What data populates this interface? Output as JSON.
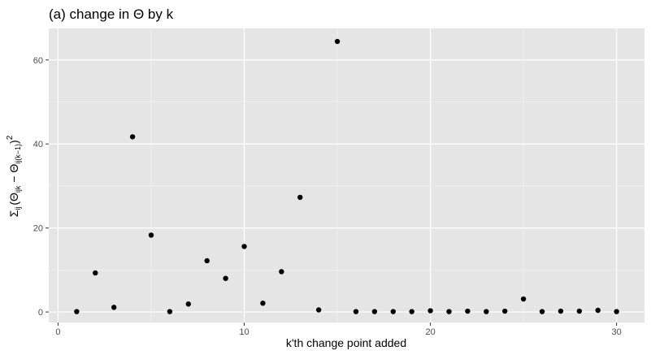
{
  "chart_data": {
    "type": "scatter",
    "title": "(a) change in  Θ by k",
    "xlabel": "k'th change point added",
    "ylabel": {
      "sum": "Σ",
      "sum_sub": "ij",
      "open": "(",
      "theta1": "Θ",
      "sub1": "ijk",
      "minus": " − ",
      "theta2": "Θ",
      "sub2": "ij(k−1)",
      "close": ")",
      "sup": "2"
    },
    "xlim": [
      -0.5,
      31.5
    ],
    "ylim": [
      -2.5,
      67.5
    ],
    "xticks": [
      0,
      10,
      20,
      30
    ],
    "xtick_labels": [
      "0",
      "10",
      "20",
      "30"
    ],
    "yticks": [
      0,
      20,
      40,
      60
    ],
    "ytick_labels": [
      "0",
      "20",
      "40",
      "60"
    ],
    "grid": true,
    "legend": "none",
    "colors": {
      "panel": "#e5e5e5",
      "grid_major": "#ffffff",
      "point": "#000000"
    },
    "x": [
      1,
      2,
      3,
      4,
      5,
      6,
      7,
      8,
      9,
      10,
      11,
      12,
      13,
      14,
      15,
      16,
      17,
      18,
      19,
      20,
      21,
      22,
      23,
      24,
      25,
      26,
      27,
      28,
      29,
      30
    ],
    "y": [
      0.1,
      9.3,
      1.1,
      41.7,
      18.3,
      0.1,
      1.9,
      12.2,
      8.0,
      15.6,
      2.1,
      9.6,
      27.3,
      0.5,
      64.4,
      0.1,
      0.1,
      0.1,
      0.1,
      0.3,
      0.1,
      0.2,
      0.1,
      0.2,
      3.1,
      0.1,
      0.2,
      0.2,
      0.4,
      0.1
    ]
  }
}
